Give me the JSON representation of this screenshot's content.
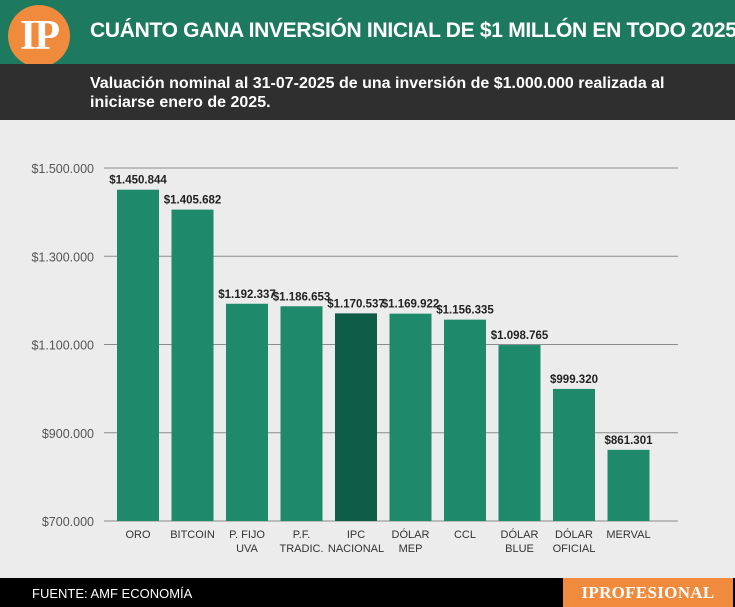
{
  "header": {
    "logo_text": "IP",
    "title": "CUÁNTO GANA INVERSIÓN INICIAL DE $1 MILLÓN EN TODO 2025",
    "subtitle": "Valuación nominal al 31-07-2025 de una inversión de $1.000.000 realizada al iniciarse enero de 2025."
  },
  "footer": {
    "source": "FUENTE: AMF ECONOMÍA",
    "brand": "IPROFESIONAL"
  },
  "colors": {
    "bar": "#1e8a6a",
    "bar_highlight": "#0f5c47",
    "header_bg": "#1e7a5f",
    "accent": "#f08a3c"
  },
  "chart_data": {
    "type": "bar",
    "categories": [
      [
        "ORO"
      ],
      [
        "BITCOIN"
      ],
      [
        "P. FIJO",
        "UVA"
      ],
      [
        "P.F.",
        "TRADIC."
      ],
      [
        "IPC",
        "NACIONAL"
      ],
      [
        "DÓLAR",
        "MEP"
      ],
      [
        "CCL"
      ],
      [
        "DÓLAR",
        "BLUE"
      ],
      [
        "DÓLAR",
        "OFICIAL"
      ],
      [
        "MERVAL"
      ]
    ],
    "values": [
      1450844,
      1405682,
      1192337,
      1186653,
      1170537,
      1169922,
      1156335,
      1098765,
      999320,
      861301
    ],
    "value_labels": [
      "$1.450.844",
      "$1.405.682",
      "$1.192.337",
      "$1.186.653",
      "$1.170.537",
      "$1.169.922",
      "$1.156.335",
      "$1.098.765",
      "$999.320",
      "$861.301"
    ],
    "highlight_index": 4,
    "ylim": [
      700000,
      1500000
    ],
    "yticks": [
      700000,
      900000,
      1100000,
      1300000,
      1500000
    ],
    "ytick_labels": [
      "$700.000",
      "$900.000",
      "$1.100.000",
      "$1.300.000",
      "$1.500.000"
    ],
    "grid": true
  }
}
